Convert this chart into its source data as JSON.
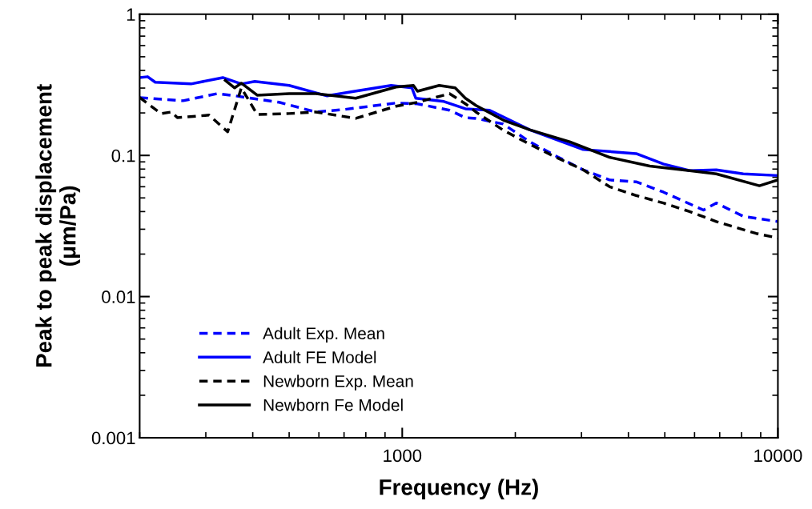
{
  "chart_data": {
    "type": "line",
    "xlabel": "Frequency (Hz)",
    "ylabel": "Peak to peak displacement\n(μm/Pa)",
    "log": "xy",
    "xlim": [
      200,
      10000
    ],
    "xticks": [
      1000,
      10000
    ],
    "ylim": [
      0.001,
      1
    ],
    "yticks": [
      0.001,
      0.01,
      0.1,
      1
    ],
    "grid": false,
    "legend": "bottom left",
    "series": [
      {
        "name": "Adult Exp. Mean",
        "color": "#0000ff",
        "line_style": "dashed",
        "x": [
          200,
          261,
          322,
          360,
          470,
          589,
          695,
          962,
          1098,
          1336,
          1473,
          1571,
          1857,
          2183,
          2566,
          3033,
          3565,
          4195,
          4955,
          6338,
          6855,
          8091,
          10000
        ],
        "values": [
          0.257,
          0.244,
          0.274,
          0.264,
          0.238,
          0.203,
          0.211,
          0.235,
          0.232,
          0.209,
          0.185,
          0.183,
          0.167,
          0.125,
          0.099,
          0.079,
          0.067,
          0.065,
          0.055,
          0.041,
          0.046,
          0.037,
          0.034
        ]
      },
      {
        "name": "Adult FE Model",
        "color": "#0000ff",
        "line_style": "solid",
        "x": [
          200,
          210,
          220,
          274,
          333,
          373,
          405,
          500,
          631,
          731,
          934,
          1061,
          1087,
          1291,
          1473,
          1708,
          2183,
          3033,
          4195,
          4955,
          5823,
          6855,
          8091,
          10000
        ],
        "values": [
          0.356,
          0.361,
          0.33,
          0.321,
          0.356,
          0.321,
          0.334,
          0.313,
          0.264,
          0.282,
          0.313,
          0.301,
          0.254,
          0.241,
          0.214,
          0.209,
          0.152,
          0.11,
          0.103,
          0.087,
          0.078,
          0.079,
          0.074,
          0.072
        ]
      },
      {
        "name": "Newborn Exp. Mean",
        "color": "#000000",
        "line_style": "dashed",
        "x": [
          200,
          228,
          243,
          252,
          306,
          343,
          373,
          411,
          500,
          589,
          752,
          962,
          1098,
          1336,
          1473,
          1571,
          1857,
          2183,
          2566,
          3033,
          3565,
          4195,
          4955,
          5823,
          6855,
          8752,
          10000
        ],
        "values": [
          0.257,
          0.198,
          0.203,
          0.185,
          0.193,
          0.147,
          0.301,
          0.195,
          0.198,
          0.203,
          0.183,
          0.223,
          0.238,
          0.274,
          0.232,
          0.203,
          0.151,
          0.12,
          0.097,
          0.079,
          0.06,
          0.052,
          0.046,
          0.04,
          0.034,
          0.028,
          0.026
        ]
      },
      {
        "name": "Newborn Fe Model",
        "color": "#000000",
        "line_style": "solid",
        "x": [
          338,
          358,
          373,
          411,
          500,
          589,
          752,
          962,
          1071,
          1098,
          1254,
          1383,
          1473,
          1571,
          1857,
          2183,
          2790,
          3565,
          4560,
          5823,
          6855,
          8930,
          10000
        ],
        "values": [
          0.34,
          0.301,
          0.325,
          0.267,
          0.274,
          0.274,
          0.254,
          0.305,
          0.313,
          0.285,
          0.313,
          0.301,
          0.254,
          0.226,
          0.178,
          0.152,
          0.125,
          0.097,
          0.084,
          0.078,
          0.074,
          0.061,
          0.067
        ]
      }
    ]
  }
}
